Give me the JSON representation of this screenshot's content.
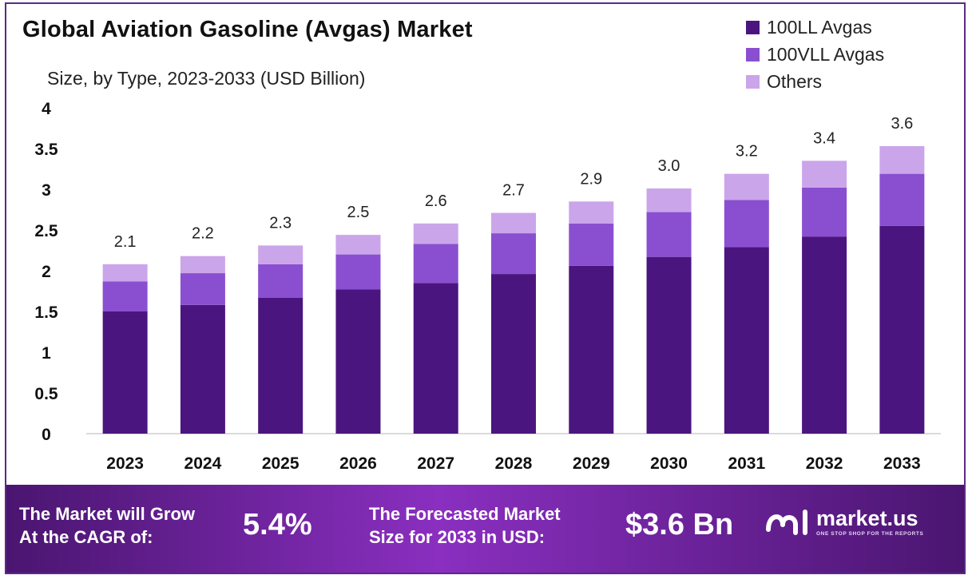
{
  "chart_data": {
    "type": "bar",
    "stacked": true,
    "title": "Global Aviation Gasoline (Avgas) Market",
    "subtitle": "Size, by Type, 2023-2033 (USD Billion)",
    "categories": [
      "2023",
      "2024",
      "2025",
      "2026",
      "2027",
      "2028",
      "2029",
      "2030",
      "2031",
      "2032",
      "2033"
    ],
    "series": [
      {
        "name": "100LL Avgas",
        "color": "#4b1580",
        "values": [
          1.5,
          1.58,
          1.67,
          1.77,
          1.85,
          1.96,
          2.06,
          2.17,
          2.29,
          2.42,
          2.55
        ]
      },
      {
        "name": "100VLL Avgas",
        "color": "#8a4fd0",
        "values": [
          0.37,
          0.39,
          0.41,
          0.43,
          0.48,
          0.5,
          0.52,
          0.55,
          0.58,
          0.6,
          0.64
        ]
      },
      {
        "name": "Others",
        "color": "#cba5ea",
        "values": [
          0.21,
          0.21,
          0.23,
          0.24,
          0.25,
          0.25,
          0.27,
          0.29,
          0.32,
          0.33,
          0.34
        ]
      }
    ],
    "totals_labels": [
      "2.1",
      "2.2",
      "2.3",
      "2.5",
      "2.6",
      "2.7",
      "2.9",
      "3.0",
      "3.2",
      "3.4",
      "3.6"
    ],
    "yticks": [
      "0",
      "0.5",
      "1",
      "1.5",
      "2",
      "2.5",
      "3",
      "3.5",
      "4"
    ],
    "ylim": [
      0,
      4
    ],
    "xlabel": "",
    "ylabel": "",
    "grid": false,
    "legend_position": "top-right"
  },
  "footer": {
    "cagr_label_line1": "The Market will Grow",
    "cagr_label_line2": "At the CAGR of:",
    "cagr_value": "5.4%",
    "forecast_label_line1": "The Forecasted Market",
    "forecast_label_line2": "Size for 2033 in USD:",
    "forecast_value": "$3.6 Bn",
    "brand_name": "market.us",
    "brand_tagline": "ONE STOP SHOP FOR THE REPORTS",
    "brand_icon": "market-us-logo-icon"
  },
  "colors": {
    "frame": "#5b2a86",
    "footer_start": "#4a1570",
    "footer_mid": "#8a2fc0"
  }
}
